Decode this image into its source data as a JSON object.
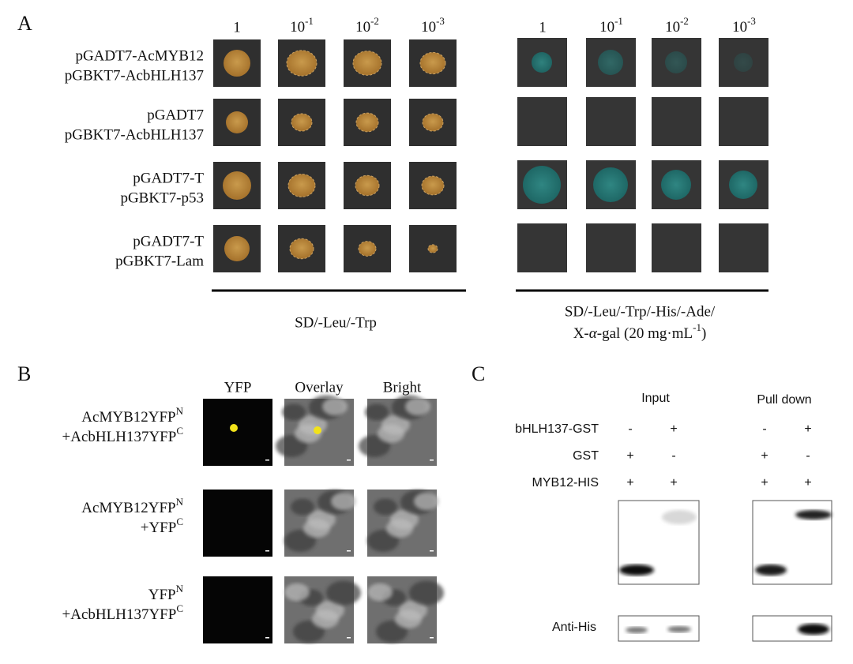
{
  "panel_a": {
    "label": "A",
    "dilutions": [
      "1",
      [
        {
          "t": "10"
        },
        {
          "t": "-1",
          "sup": true
        }
      ],
      [
        {
          "t": "10"
        },
        {
          "t": "-2",
          "sup": true
        }
      ],
      [
        {
          "t": "10"
        },
        {
          "t": "-3",
          "sup": true
        }
      ]
    ],
    "rows": [
      [
        "pGADT7-AcMYB12",
        "pGBKT7-AcbHLH137"
      ],
      [
        "pGADT7",
        "pGBKT7-AcbHLH137"
      ],
      [
        "pGADT7-T",
        "pGBKT7-p53"
      ],
      [
        "pGADT7-T",
        "pGBKT7-Lam"
      ]
    ],
    "media": [
      [
        "SD/-Leu/-Trp"
      ],
      [
        "SD/-Leu/-Trp/-His/-Ade/",
        [
          {
            "t": "X-"
          },
          {
            "t": "α",
            "italic": true
          },
          {
            "t": "-gal (20 mg·mL"
          },
          {
            "t": "-1",
            "sup": true
          },
          {
            "t": ")"
          }
        ]
      ]
    ]
  },
  "panel_b": {
    "label": "B",
    "columns": [
      "YFP",
      "Overlay",
      "Bright"
    ],
    "rows": [
      [
        [
          {
            "t": "AcMYB12YFP"
          },
          {
            "t": "N",
            "sup": true
          }
        ],
        [
          {
            "t": "+AcbHLH137YFP"
          },
          {
            "t": "C",
            "sup": true
          }
        ]
      ],
      [
        [
          {
            "t": "AcMYB12YFP"
          },
          {
            "t": "N",
            "sup": true
          }
        ],
        [
          {
            "t": "+YFP"
          },
          {
            "t": "C",
            "sup": true
          }
        ]
      ],
      [
        [
          {
            "t": "YFP"
          },
          {
            "t": "N",
            "sup": true
          }
        ],
        [
          {
            "t": "+AcbHLH137YFP"
          },
          {
            "t": "C",
            "sup": true
          }
        ]
      ]
    ]
  },
  "panel_c": {
    "label": "C",
    "groups": [
      "Input",
      "Pull down"
    ],
    "rows": [
      {
        "name": "bHLH137-GST",
        "signs": [
          "-",
          "+",
          "-",
          "+"
        ]
      },
      {
        "name": "GST",
        "signs": [
          "+",
          "-",
          "+",
          "-"
        ]
      },
      {
        "name": "MYB12-HIS",
        "signs": [
          "+",
          "+",
          "+",
          "+"
        ]
      }
    ],
    "blot_label": "Anti-His"
  }
}
